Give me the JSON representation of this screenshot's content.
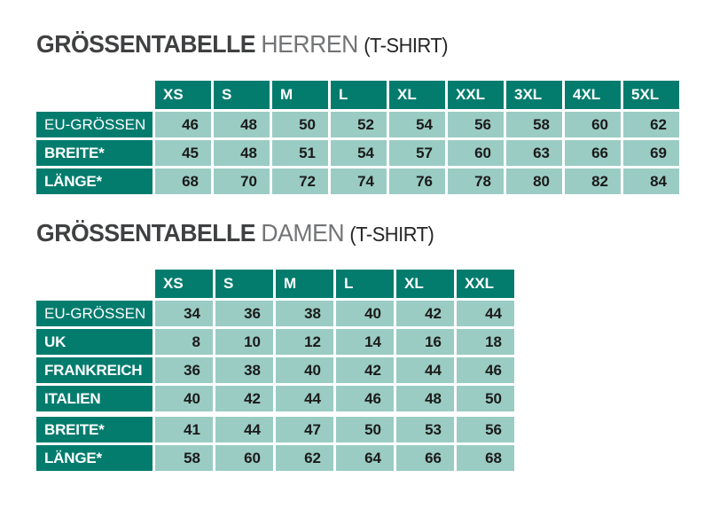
{
  "colors": {
    "header_bg": "#037c6e",
    "cell_bg": "#9accc4",
    "header_text": "#ffffff",
    "cell_text": "#1b1b19",
    "title_main": "#3f4041",
    "title_sub": "#737476",
    "title_suffix": "#252525",
    "page_bg": "#ffffff"
  },
  "tables": [
    {
      "id": "herren",
      "title": {
        "main": "GRÖSSENTABELLE",
        "sub": "HERREN",
        "suffix": "(T-SHIRT)"
      },
      "columns": [
        "XS",
        "S",
        "M",
        "L",
        "XL",
        "XXL",
        "3XL",
        "4XL",
        "5XL"
      ],
      "rows": [
        {
          "label": "EU-GRÖSSEN",
          "bold": false,
          "group_start": false,
          "values": [
            "46",
            "48",
            "50",
            "52",
            "54",
            "56",
            "58",
            "60",
            "62"
          ]
        },
        {
          "label": "BREITE*",
          "bold": true,
          "group_start": false,
          "values": [
            "45",
            "48",
            "51",
            "54",
            "57",
            "60",
            "63",
            "66",
            "69"
          ]
        },
        {
          "label": "LÄNGE*",
          "bold": true,
          "group_start": false,
          "values": [
            "68",
            "70",
            "72",
            "74",
            "76",
            "78",
            "80",
            "82",
            "84"
          ]
        }
      ]
    },
    {
      "id": "damen",
      "title": {
        "main": "GRÖSSENTABELLE",
        "sub": "DAMEN",
        "suffix": "(T-SHIRT)"
      },
      "columns": [
        "XS",
        "S",
        "M",
        "L",
        "XL",
        "XXL"
      ],
      "rows": [
        {
          "label": "EU-GRÖSSEN",
          "bold": false,
          "group_start": false,
          "values": [
            "34",
            "36",
            "38",
            "40",
            "42",
            "44"
          ]
        },
        {
          "label": "UK",
          "bold": true,
          "group_start": false,
          "values": [
            "8",
            "10",
            "12",
            "14",
            "16",
            "18"
          ]
        },
        {
          "label": "FRANKREICH",
          "bold": true,
          "group_start": false,
          "values": [
            "36",
            "38",
            "40",
            "42",
            "44",
            "46"
          ]
        },
        {
          "label": "ITALIEN",
          "bold": true,
          "group_start": false,
          "values": [
            "40",
            "42",
            "44",
            "46",
            "48",
            "50"
          ]
        },
        {
          "label": "BREITE*",
          "bold": true,
          "group_start": true,
          "values": [
            "41",
            "44",
            "47",
            "50",
            "53",
            "56"
          ]
        },
        {
          "label": "LÄNGE*",
          "bold": true,
          "group_start": false,
          "values": [
            "58",
            "60",
            "62",
            "64",
            "66",
            "68"
          ]
        }
      ]
    }
  ]
}
